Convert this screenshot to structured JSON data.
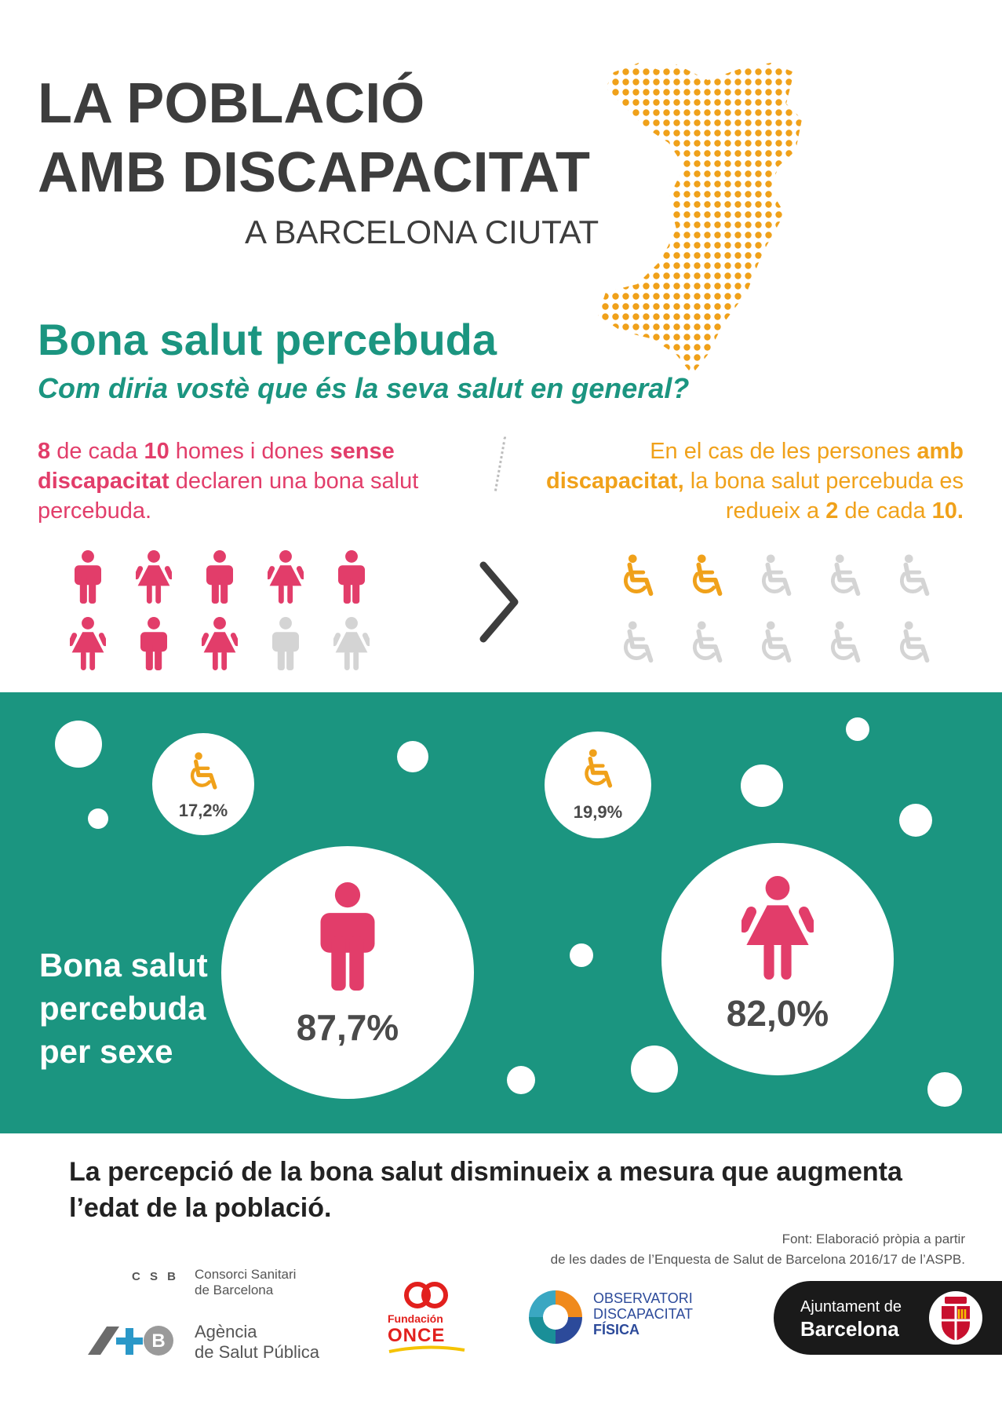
{
  "header": {
    "title_line1": "LA POBLACIÓ",
    "title_line2": "AMB DISCAPACITAT",
    "subtitle": "A BARCELONA CIUTAT"
  },
  "section": {
    "title": "Bona salut percebuda",
    "question": "Com diria vostè que és la seva salut en general?"
  },
  "left_stat": {
    "p1_num": "8",
    "p1_a": " de cada ",
    "p1_num2": "10",
    "p1_b": " homes i dones ",
    "p1_bold": "sense discapacitat",
    "p1_c": " declaren una bona salut percebuda."
  },
  "right_stat": {
    "a": "En el cas de les persones ",
    "bold": "amb discapacitat,",
    "b": " la bona salut percebuda es redueix a ",
    "num": "2",
    "c": " de cada ",
    "num2": "10."
  },
  "people_icons": [
    "man-icon",
    "woman-icon",
    "man-icon",
    "woman-icon",
    "man-icon",
    "woman-icon",
    "man-icon",
    "woman-icon",
    "man-icon",
    "woman-icon"
  ],
  "people_highlighted": 8,
  "wheelchair_highlighted": 2,
  "colors": {
    "teal": "#1b9580",
    "pink": "#e23d6a",
    "orange": "#f0a11a",
    "grey": "#d4d4d4",
    "dark": "#3d3d3d"
  },
  "band": {
    "label": "Bona salut percebuda per sexe",
    "men_pct": "87,7%",
    "women_pct": "82,0%",
    "men_disab_pct": "17,2%",
    "women_disab_pct": "19,9%"
  },
  "conclusion": "La percepció de la bona salut disminueix a mesura que augmenta l’edat de la població.",
  "source_line1": "Font: Elaboració pròpia a partir",
  "source_line2": "de les dades de l’Enquesta de Salut de Barcelona 2016/17 de l’ASPB.",
  "logos": {
    "csb_abbr": "C S B",
    "csb_name1": "Consorci Sanitari",
    "csb_name2": "de Barcelona",
    "aspb_name1": "Agència",
    "aspb_name2": "de Salut Pública",
    "once1": "Fundación",
    "once2": "ONCE",
    "odf1": "OBSERVATORI",
    "odf2": "DISCAPACITAT",
    "odf3": "FÍSICA",
    "ajb1": "Ajuntament de",
    "ajb2": "Barcelona"
  }
}
